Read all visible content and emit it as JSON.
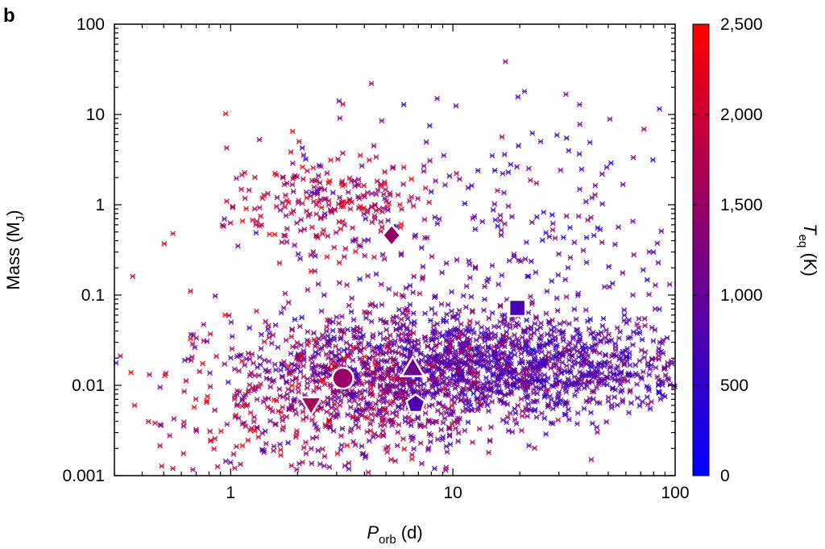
{
  "panel_label": "b",
  "chart_data": {
    "type": "scatter",
    "x_scale": "log",
    "y_scale": "log",
    "xlim": [
      0.3,
      100
    ],
    "ylim": [
      0.001,
      100
    ],
    "xlabel": {
      "main": "P",
      "sub": "orb",
      "unit": " (d)"
    },
    "ylabel": {
      "main": "Mass (M",
      "sub": "J",
      "end": ")"
    },
    "x_ticks": [
      {
        "value": 1,
        "label": "1"
      },
      {
        "value": 10,
        "label": "10"
      },
      {
        "value": 100,
        "label": "100"
      }
    ],
    "y_ticks": [
      {
        "value": 100,
        "label": "100"
      },
      {
        "value": 10,
        "label": "10"
      },
      {
        "value": 1,
        "label": "1"
      },
      {
        "value": 0.1,
        "label": "0.1"
      },
      {
        "value": 0.01,
        "label": "0.01"
      },
      {
        "value": 0.001,
        "label": "0.001"
      }
    ],
    "grid": false,
    "colorbar": {
      "title_main": "T",
      "title_sub": "eq",
      "title_unit": " (K)",
      "min": 0,
      "max": 2500,
      "low_color": "#0000ff",
      "high_color": "#ff0000",
      "ticks": [
        {
          "value": 0,
          "label": "0"
        },
        {
          "value": 500,
          "label": "500"
        },
        {
          "value": 1000,
          "label": "1,000"
        },
        {
          "value": 1500,
          "label": "1,500"
        },
        {
          "value": 2000,
          "label": "2,000"
        },
        {
          "value": 2500,
          "label": "2,500"
        }
      ]
    },
    "highlighted_planets": [
      {
        "marker": "diamond",
        "x": 5.3,
        "y": 0.46,
        "temp": 1450
      },
      {
        "marker": "square",
        "x": 19.5,
        "y": 0.072,
        "temp": 700
      },
      {
        "marker": "circle",
        "x": 3.2,
        "y": 0.012,
        "temp": 1500
      },
      {
        "marker": "triangle-up",
        "x": 6.6,
        "y": 0.0155,
        "temp": 1100
      },
      {
        "marker": "triangle-down",
        "x": 2.3,
        "y": 0.006,
        "temp": 1650
      },
      {
        "marker": "pentagon",
        "x": 6.8,
        "y": 0.0062,
        "temp": 800
      }
    ],
    "population": {
      "description_note": "",
      "clusters": [
        {
          "x_center": 2.8,
          "x_spread": 0.22,
          "y_center": 1.0,
          "y_spread": 0.28,
          "count": 230,
          "temp": 1750,
          "temp_spread": 350
        },
        {
          "x_center": 15,
          "x_spread": 0.45,
          "y_center": 0.016,
          "y_spread": 0.28,
          "count": 1500,
          "temp": 850,
          "temp_spread": 300
        },
        {
          "x_center": 4.0,
          "x_spread": 0.32,
          "y_center": 0.009,
          "y_spread": 0.45,
          "count": 650,
          "temp": 1350,
          "temp_spread": 350
        },
        {
          "x_center": 20,
          "x_spread": 0.55,
          "y_center": 0.4,
          "y_spread": 0.8,
          "count": 320,
          "temp": 900,
          "temp_spread": 350
        },
        {
          "x_center": 1.2,
          "x_spread": 0.35,
          "y_center": 0.006,
          "y_spread": 0.5,
          "count": 140,
          "temp": 1900,
          "temp_spread": 350
        }
      ],
      "explicit_points": [
        {
          "x": 0.37,
          "y": 0.006,
          "t": 2100
        },
        {
          "x": 0.55,
          "y": 0.48,
          "t": 2000
        },
        {
          "x": 0.66,
          "y": 0.11,
          "t": 2000
        },
        {
          "x": 0.95,
          "y": 10.2,
          "t": 2300
        },
        {
          "x": 1.9,
          "y": 6.5,
          "t": 2400
        },
        {
          "x": 4.3,
          "y": 22,
          "t": 1500
        },
        {
          "x": 3.2,
          "y": 13,
          "t": 1800
        },
        {
          "x": 21,
          "y": 18,
          "t": 900
        },
        {
          "x": 8.5,
          "y": 15,
          "t": 700
        },
        {
          "x": 85,
          "y": 11.5,
          "t": 600
        },
        {
          "x": 0.55,
          "y": 0.0012,
          "t": 1900
        },
        {
          "x": 1.0,
          "y": 0.0014,
          "t": 900
        }
      ]
    }
  }
}
